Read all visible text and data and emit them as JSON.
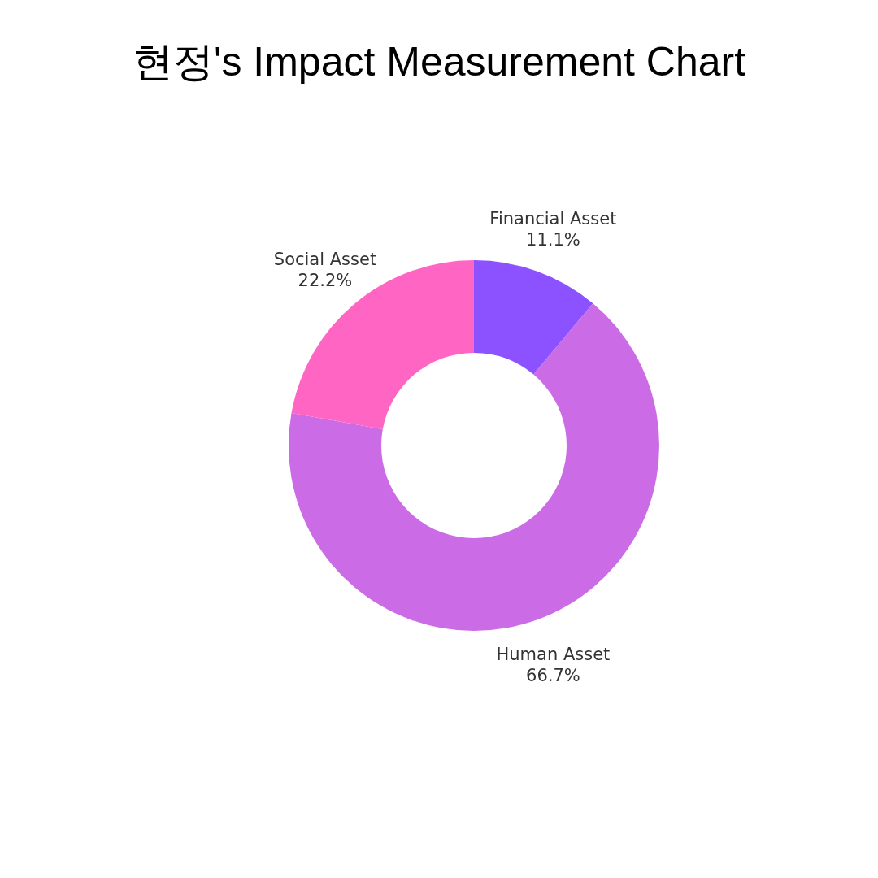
{
  "chart_data": {
    "type": "donut",
    "title": "현정's Impact Measurement Chart",
    "categories": [
      "Financial Asset",
      "Human Asset",
      "Social Asset"
    ],
    "values": [
      11.1,
      66.7,
      22.2
    ],
    "colors": [
      "#8c52ff",
      "#cb6ce6",
      "#ff66c4"
    ],
    "value_labels": [
      "11.1%",
      "66.7%",
      "22.2%"
    ]
  }
}
